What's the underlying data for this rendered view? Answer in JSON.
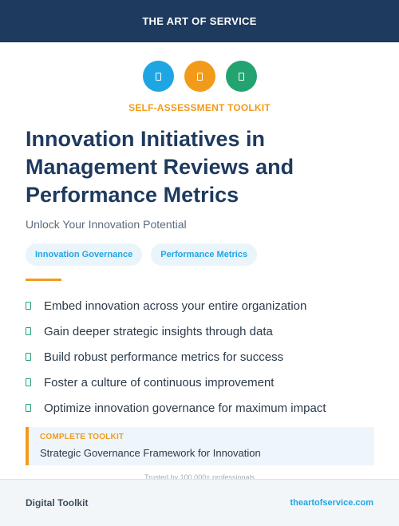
{
  "header": {
    "brand": "THE ART OF SERVICE"
  },
  "icons": [
    {
      "name": "document-icon",
      "color": "#1ea6e4"
    },
    {
      "name": "document-icon",
      "color": "#f29b1b"
    },
    {
      "name": "document-icon",
      "color": "#23a36f"
    }
  ],
  "eyebrow": {
    "text": "SELF-ASSESSMENT TOOLKIT",
    "color": "#f29b1b"
  },
  "title": "Innovation Initiatives in Management Reviews and Performance Metrics",
  "subtitle": "Unlock Your Innovation Potential",
  "tags": [
    {
      "label": "Innovation Governance"
    },
    {
      "label": "Performance Metrics"
    }
  ],
  "tag_color": "#1ea6e4",
  "divider_color": "#f29b1b",
  "benefits": [
    "Embed innovation across your entire organization",
    "Gain deeper strategic insights through data",
    "Build robust performance metrics for success",
    "Foster a culture of continuous improvement",
    "Optimize innovation governance for maximum impact"
  ],
  "callout": {
    "label": "COMPLETE TOOLKIT",
    "text": "Strategic Governance Framework for Innovation",
    "label_color": "#f29b1b"
  },
  "trusted": "Trusted by 100,000+ professionals",
  "footer": {
    "left": "Digital Toolkit",
    "right": "theartofservice.com",
    "right_color": "#1ea6e4"
  }
}
